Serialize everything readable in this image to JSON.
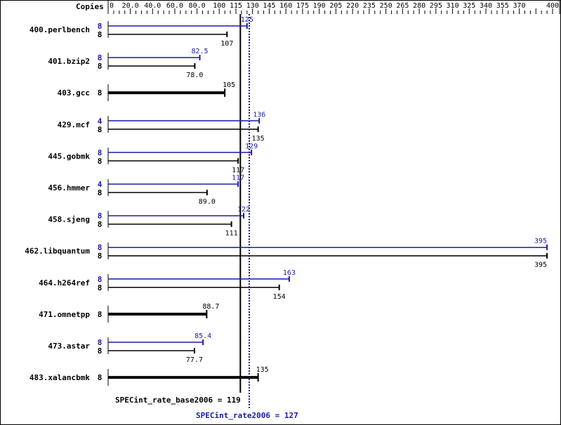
{
  "chart_data": {
    "type": "bar",
    "orientation": "horizontal",
    "axis_label": "Copies",
    "xlim": [
      0,
      400
    ],
    "ticks": [
      "0",
      "20.0",
      "40.0",
      "60.0",
      "80.0",
      "100",
      "115",
      "130",
      "145",
      "160",
      "175",
      "190",
      "205",
      "220",
      "235",
      "250",
      "265",
      "280",
      "295",
      "310",
      "325",
      "340",
      "355",
      "370",
      "400"
    ],
    "tick_values": [
      0,
      20,
      40,
      60,
      80,
      100,
      115,
      130,
      145,
      160,
      175,
      190,
      205,
      220,
      235,
      250,
      265,
      280,
      295,
      310,
      325,
      340,
      355,
      370,
      400
    ],
    "colors": {
      "base": "#000000",
      "peak": "#1a1aa8"
    },
    "benchmarks": [
      {
        "name": "400.perlbench",
        "peak_copies": "8",
        "peak": 125,
        "peak_label": "125",
        "base_copies": "8",
        "base": 107,
        "base_label": "107"
      },
      {
        "name": "401.bzip2",
        "peak_copies": "8",
        "peak": 82.5,
        "peak_label": "82.5",
        "base_copies": "8",
        "base": 78.0,
        "base_label": "78.0"
      },
      {
        "name": "403.gcc",
        "base_copies": "8",
        "base": 105,
        "base_label": "105"
      },
      {
        "name": "429.mcf",
        "peak_copies": "4",
        "peak": 136,
        "peak_label": "136",
        "base_copies": "8",
        "base": 135,
        "base_label": "135"
      },
      {
        "name": "445.gobmk",
        "peak_copies": "8",
        "peak": 129,
        "peak_label": "129",
        "base_copies": "8",
        "base": 117,
        "base_label": "117"
      },
      {
        "name": "456.hmmer",
        "peak_copies": "4",
        "peak": 117,
        "peak_label": "117",
        "base_copies": "8",
        "base": 89.0,
        "base_label": "89.0"
      },
      {
        "name": "458.sjeng",
        "peak_copies": "8",
        "peak": 122,
        "peak_label": "122",
        "base_copies": "8",
        "base": 111,
        "base_label": "111"
      },
      {
        "name": "462.libquantum",
        "peak_copies": "8",
        "peak": 395,
        "peak_label": "395",
        "base_copies": "8",
        "base": 395,
        "base_label": "395"
      },
      {
        "name": "464.h264ref",
        "peak_copies": "8",
        "peak": 163,
        "peak_label": "163",
        "base_copies": "8",
        "base": 154,
        "base_label": "154"
      },
      {
        "name": "471.omnetpp",
        "base_copies": "8",
        "base": 88.7,
        "base_label": "88.7"
      },
      {
        "name": "473.astar",
        "peak_copies": "8",
        "peak": 85.4,
        "peak_label": "85.4",
        "base_copies": "8",
        "base": 77.7,
        "base_label": "77.7"
      },
      {
        "name": "483.xalancbmk",
        "base_copies": "8",
        "base": 135,
        "base_label": "135"
      }
    ],
    "base_mean": 119,
    "base_mean_label": "SPECint_rate_base2006 = 119",
    "peak_mean": 127,
    "peak_mean_label": "SPECint_rate2006 = 127"
  }
}
